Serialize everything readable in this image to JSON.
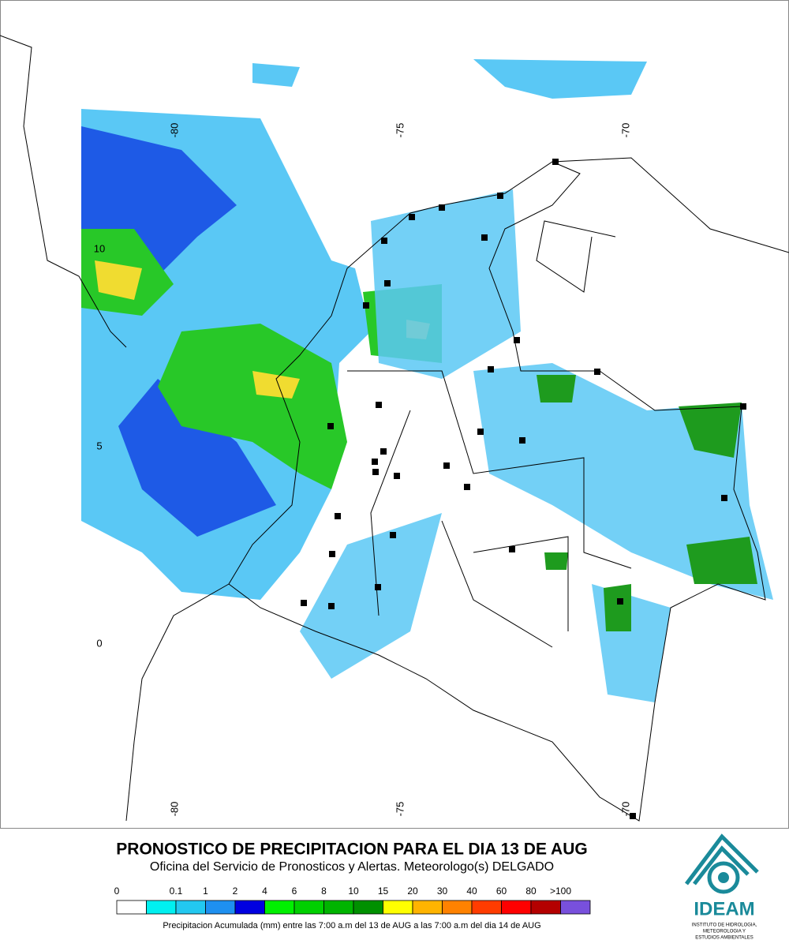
{
  "map": {
    "lon_labels": [
      "-80",
      "-75",
      "-70"
    ],
    "lat_labels": [
      "10",
      "5",
      "0"
    ]
  },
  "header": {
    "title": "PRONOSTICO DE PRECIPITACION PARA EL DIA 13 DE AUG",
    "subtitle": "Oficina del Servicio de Pronosticos y Alertas. Meteorologo(s) DELGADO"
  },
  "legend": {
    "labels": [
      "0",
      "0.1",
      "1",
      "2",
      "4",
      "6",
      "8",
      "10",
      "15",
      "20",
      "30",
      "40",
      "60",
      "80",
      ">100"
    ],
    "colors": [
      "#ffffff",
      "#00f0f0",
      "#22c8f0",
      "#1e90f0",
      "#0000e0",
      "#00f000",
      "#00d000",
      "#00b400",
      "#009000",
      "#ffff00",
      "#ffb400",
      "#ff8200",
      "#ff3c00",
      "#ff0000",
      "#b40000",
      "#7850dc"
    ],
    "note": "Precipitacion Acumulada (mm) entre las 7:00 a.m del 13 de AUG a las 7:00 a.m del dia 14 de AUG"
  },
  "logo": {
    "name": "IDEAM",
    "lines": [
      "INSTITUTO DE HIDROLOGIA,",
      "METEOROLOGIA Y",
      "ESTUDIOS AMBIENTALES"
    ]
  }
}
